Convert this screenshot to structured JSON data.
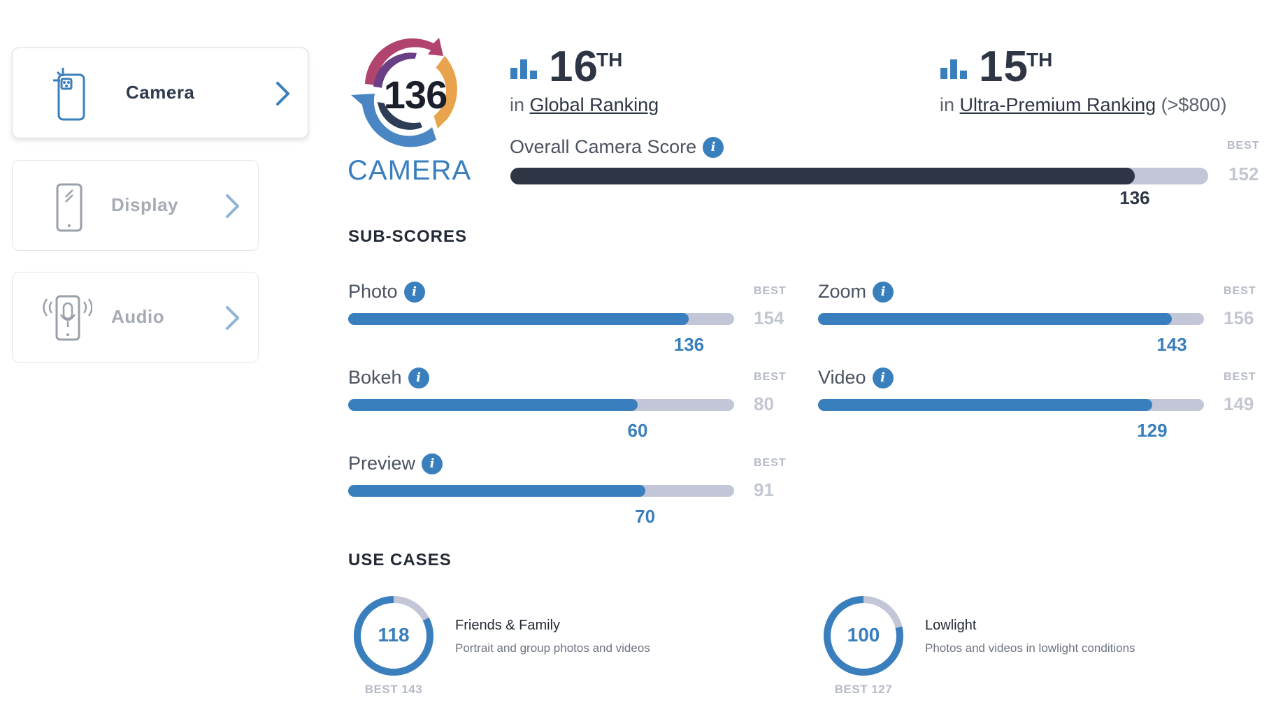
{
  "sidebar": {
    "items": [
      {
        "label": "Camera",
        "icon": "phone-camera-icon",
        "active": true
      },
      {
        "label": "Display",
        "icon": "phone-display-icon",
        "active": false
      },
      {
        "label": "Audio",
        "icon": "phone-audio-icon",
        "active": false
      }
    ]
  },
  "badge": {
    "score": "136",
    "title": "CAMERA"
  },
  "rankings": [
    {
      "rank": "16",
      "suffix": "TH",
      "prefix": "in",
      "link": "Global Ranking",
      "extra": ""
    },
    {
      "rank": "15",
      "suffix": "TH",
      "prefix": "in",
      "link": "Ultra-Premium Ranking",
      "extra": "(>$800)"
    }
  ],
  "overall": {
    "label": "Overall Camera Score",
    "best_label": "BEST",
    "best": 152,
    "score": 136
  },
  "subscores": {
    "heading": "SUB-SCORES",
    "items": [
      {
        "label": "Photo",
        "score": 136,
        "best": 154
      },
      {
        "label": "Zoom",
        "score": 143,
        "best": 156
      },
      {
        "label": "Bokeh",
        "score": 60,
        "best": 80
      },
      {
        "label": "Video",
        "score": 129,
        "best": 149
      },
      {
        "label": "Preview",
        "score": 70,
        "best": 91
      }
    ],
    "best_label": "BEST"
  },
  "use_cases": {
    "heading": "USE CASES",
    "items": [
      {
        "title": "Friends & Family",
        "description": "Portrait and group photos and videos",
        "score": 118,
        "best": 143,
        "best_text": "BEST 143"
      },
      {
        "title": "Lowlight",
        "description": "Photos and videos in lowlight conditions",
        "score": 100,
        "best": 127,
        "best_text": "BEST 127"
      }
    ]
  },
  "colors": {
    "accent": "#3a7fbd",
    "dark": "#2e3544",
    "track": "#c3c6d6",
    "muted": "#b5bac6"
  }
}
